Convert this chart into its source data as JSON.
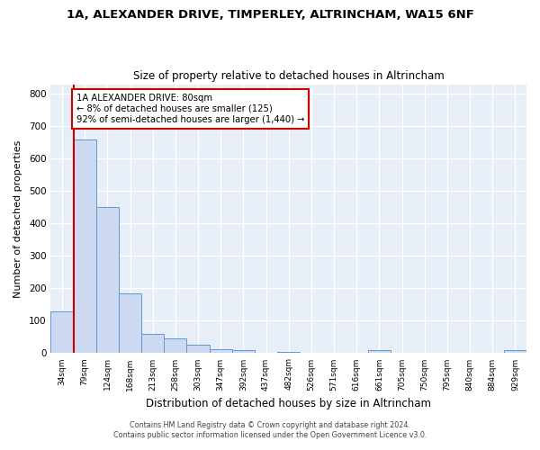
{
  "title1": "1A, ALEXANDER DRIVE, TIMPERLEY, ALTRINCHAM, WA15 6NF",
  "title2": "Size of property relative to detached houses in Altrincham",
  "xlabel": "Distribution of detached houses by size in Altrincham",
  "ylabel": "Number of detached properties",
  "bin_labels": [
    "34sqm",
    "79sqm",
    "124sqm",
    "168sqm",
    "213sqm",
    "258sqm",
    "303sqm",
    "347sqm",
    "392sqm",
    "437sqm",
    "482sqm",
    "526sqm",
    "571sqm",
    "616sqm",
    "661sqm",
    "705sqm",
    "750sqm",
    "795sqm",
    "840sqm",
    "884sqm",
    "929sqm"
  ],
  "bar_values": [
    130,
    660,
    450,
    185,
    60,
    47,
    27,
    13,
    10,
    0,
    5,
    0,
    0,
    0,
    10,
    0,
    0,
    0,
    0,
    0,
    10
  ],
  "bar_color": "#ccd9f0",
  "bar_edge_color": "#5b9bd5",
  "vline_color": "#cc0000",
  "vline_position": 0.5,
  "annotation_title": "1A ALEXANDER DRIVE: 80sqm",
  "annotation_line1": "← 8% of detached houses are smaller (125)",
  "annotation_line2": "92% of semi-detached houses are larger (1,440) →",
  "annotation_box_edge": "#cc0000",
  "ylim": [
    0,
    830
  ],
  "yticks": [
    0,
    100,
    200,
    300,
    400,
    500,
    600,
    700,
    800
  ],
  "footer1": "Contains HM Land Registry data © Crown copyright and database right 2024.",
  "footer2": "Contains public sector information licensed under the Open Government Licence v3.0.",
  "bg_color": "#ffffff",
  "plot_bg_color": "#e8eef8"
}
